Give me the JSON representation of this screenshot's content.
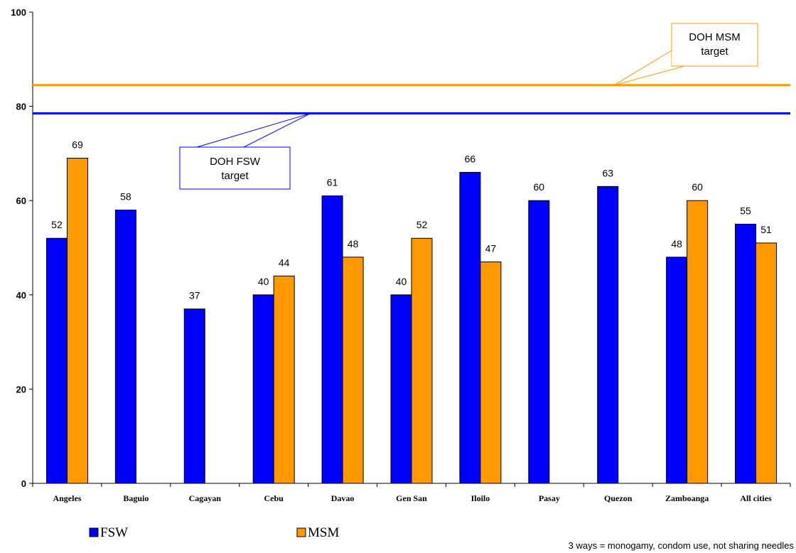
{
  "chart_data": {
    "type": "bar",
    "categories": [
      "Angeles",
      "Baguio",
      "Cagayan",
      "Cebu",
      "Davao",
      "Gen San",
      "Iloilo",
      "Pasay",
      "Quezon",
      "Zamboanga",
      "All cities"
    ],
    "series": [
      {
        "name": "FSW",
        "color": "#0000ff",
        "values": [
          52,
          58,
          37,
          40,
          61,
          40,
          66,
          60,
          63,
          48,
          55
        ]
      },
      {
        "name": "MSM",
        "color": "#ff9900",
        "values": [
          69,
          null,
          null,
          44,
          48,
          52,
          47,
          null,
          null,
          60,
          51
        ]
      }
    ],
    "ylim": [
      0,
      100
    ],
    "yticks": [
      0,
      20,
      40,
      60,
      80,
      100
    ],
    "grid": false,
    "legend_position": "bottom-left",
    "reference_lines": [
      {
        "name": "DOH MSM target",
        "value": 84.5,
        "color": "#ff9900",
        "label_lines": [
          "DOH MSM",
          "target"
        ]
      },
      {
        "name": "DOH FSW target",
        "value": 78.5,
        "color": "#0000ff",
        "label_lines": [
          "DOH FSW",
          "target"
        ]
      }
    ]
  },
  "footnote": "3 ways = monogamy, condom use, not sharing needles"
}
